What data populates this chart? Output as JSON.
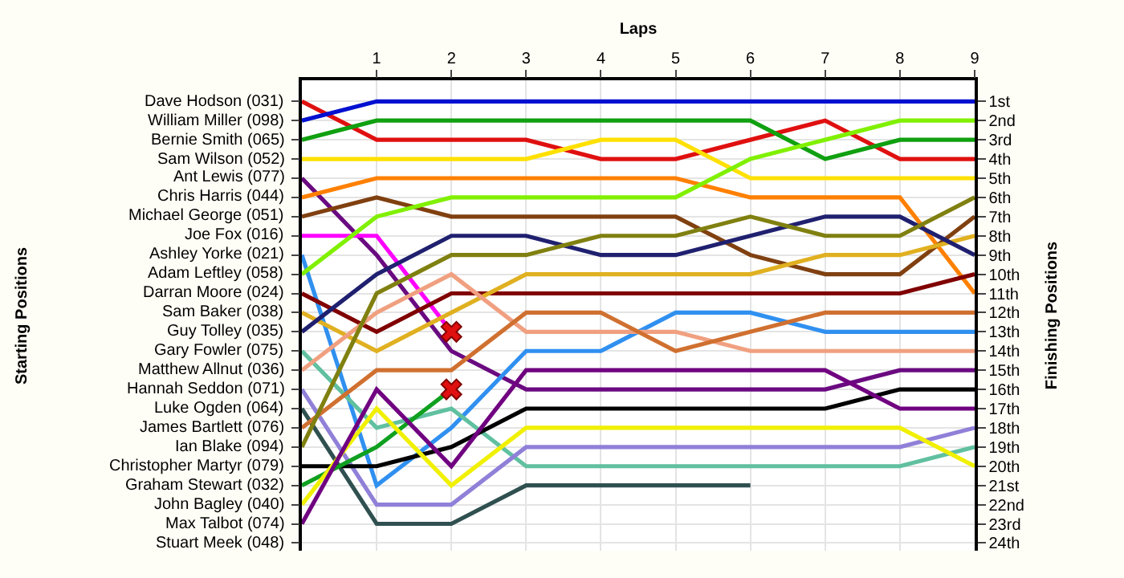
{
  "chart_data": {
    "type": "line",
    "xlabel": "Laps",
    "y2label": "Finishing Positions",
    "x": [
      0,
      1,
      2,
      3,
      4,
      5,
      6,
      7,
      8,
      9
    ],
    "xlim": [
      0,
      9
    ],
    "xticks": [
      1,
      2,
      3,
      4,
      5,
      6,
      7,
      8,
      9
    ],
    "ylim": [
      24.4,
      -0.1
    ],
    "yticks": [
      {
        "value": 1,
        "label": "1st"
      },
      {
        "value": 2,
        "label": "2nd"
      },
      {
        "value": 3,
        "label": "3rd"
      },
      {
        "value": 4,
        "label": "4th"
      },
      {
        "value": 5,
        "label": "5th"
      },
      {
        "value": 6,
        "label": "6th"
      },
      {
        "value": 7,
        "label": "7th"
      },
      {
        "value": 8,
        "label": "8th"
      },
      {
        "value": 9,
        "label": "9th"
      },
      {
        "value": 10,
        "label": "10th"
      },
      {
        "value": 11,
        "label": "11th"
      },
      {
        "value": 12,
        "label": "12th"
      },
      {
        "value": 13,
        "label": "13th"
      },
      {
        "value": 14,
        "label": "14th"
      },
      {
        "value": 15,
        "label": "15th"
      },
      {
        "value": 16,
        "label": "16th"
      },
      {
        "value": 17,
        "label": "17th"
      },
      {
        "value": 18,
        "label": "18th"
      },
      {
        "value": 19,
        "label": "19th"
      },
      {
        "value": 20,
        "label": "20th"
      },
      {
        "value": 21,
        "label": "21st"
      },
      {
        "value": 22,
        "label": "22nd"
      },
      {
        "value": 23,
        "label": "23rd"
      },
      {
        "value": 24,
        "label": "24th"
      }
    ],
    "grid": true,
    "marker": "none",
    "line_style": "solid",
    "annotations": [
      "Starting Positions",
      "Stuart Meek (048)"
    ],
    "series": [
      {
        "name": "Dave Hodson (031)",
        "color": "#e01010",
        "values": [
          1,
          3,
          3,
          3,
          4,
          4,
          3,
          2,
          4,
          4
        ]
      },
      {
        "name": "William Miller (098)",
        "color": "#0010d0",
        "values": [
          2,
          1,
          1,
          1,
          1,
          1,
          1,
          1,
          1,
          1
        ]
      },
      {
        "name": "Bernie Smith (065)",
        "color": "#10a010",
        "values": [
          3,
          2,
          2,
          2,
          2,
          2,
          2,
          4,
          3,
          3
        ]
      },
      {
        "name": "Sam Wilson (052)",
        "color": "#ffe000",
        "values": [
          4,
          4,
          4,
          4,
          3,
          3,
          5,
          5,
          5,
          5
        ]
      },
      {
        "name": "Ant Lewis (077)",
        "color": "#6a0a80",
        "values": [
          5,
          9,
          14,
          16,
          16,
          16,
          16,
          16,
          15,
          15
        ]
      },
      {
        "name": "Chris Harris (044)",
        "color": "#ff8000",
        "values": [
          6,
          5,
          5,
          5,
          5,
          5,
          6,
          6,
          6,
          11
        ]
      },
      {
        "name": "Michael George (051)",
        "color": "#804010",
        "values": [
          7,
          6,
          7,
          7,
          7,
          7,
          9,
          10,
          10,
          7
        ]
      },
      {
        "name": "Joe Fox (016)",
        "color": "#ff00ff",
        "values": [
          8,
          8,
          13,
          null,
          null,
          null,
          null,
          null,
          null,
          null
        ]
      },
      {
        "name": "Ashley Yorke (021)",
        "color": "#3090f0",
        "values": [
          9,
          21,
          18,
          14,
          14,
          12,
          12,
          13,
          13,
          13
        ]
      },
      {
        "name": "Adam Leftley (058)",
        "color": "#80f000",
        "values": [
          10,
          7,
          6,
          6,
          6,
          6,
          4,
          3,
          2,
          2
        ]
      },
      {
        "name": "Darran Moore (024)",
        "color": "#800000",
        "values": [
          11,
          13,
          11,
          11,
          11,
          11,
          11,
          11,
          11,
          10
        ]
      },
      {
        "name": "Sam Baker (038)",
        "color": "#e0b020",
        "values": [
          12,
          14,
          12,
          10,
          10,
          10,
          10,
          9,
          9,
          8
        ]
      },
      {
        "name": "Guy Tolley (035)",
        "color": "#202070",
        "values": [
          13,
          10,
          8,
          8,
          9,
          9,
          8,
          7,
          7,
          9
        ]
      },
      {
        "name": "Gary Fowler (075)",
        "color": "#60c0a0",
        "values": [
          14,
          18,
          17,
          20,
          20,
          20,
          20,
          20,
          20,
          19
        ]
      },
      {
        "name": "Matthew Allnut (036)",
        "color": "#f0a080",
        "values": [
          15,
          12,
          10,
          13,
          13,
          13,
          14,
          14,
          14,
          14
        ]
      },
      {
        "name": "Hannah Seddon (071)",
        "color": "#9080d8",
        "values": [
          16,
          22,
          22,
          19,
          19,
          19,
          19,
          19,
          19,
          18
        ]
      },
      {
        "name": "Luke Ogden (064)",
        "color": "#305050",
        "values": [
          17,
          23,
          23,
          21,
          21,
          21,
          21,
          null,
          null,
          null
        ]
      },
      {
        "name": "James Bartlett (076)",
        "color": "#d07030",
        "values": [
          18,
          15,
          15,
          12,
          12,
          14,
          13,
          12,
          12,
          12
        ]
      },
      {
        "name": "Ian Blake (094)",
        "color": "#808010",
        "values": [
          19,
          11,
          9,
          9,
          8,
          8,
          7,
          8,
          8,
          6
        ]
      },
      {
        "name": "Christopher Martyr (079)",
        "color": "#000000",
        "values": [
          20,
          20,
          19,
          17,
          17,
          17,
          17,
          17,
          16,
          16
        ]
      },
      {
        "name": "Graham Stewart (032)",
        "color": "#10a020",
        "values": [
          21,
          19,
          16,
          null,
          null,
          null,
          null,
          null,
          null,
          null
        ]
      },
      {
        "name": "John Bagley (040)",
        "color": "#f0f000",
        "values": [
          22,
          17,
          21,
          18,
          18,
          18,
          18,
          18,
          18,
          20
        ]
      },
      {
        "name": "Max Talbot (074)",
        "color": "#700080",
        "values": [
          23,
          16,
          20,
          15,
          15,
          15,
          15,
          15,
          17,
          17
        ]
      },
      {
        "type": "scatter",
        "x": [
          2,
          2
        ],
        "values": [
          13,
          16
        ],
        "color": "#e01010",
        "marker": "cross"
      }
    ]
  }
}
